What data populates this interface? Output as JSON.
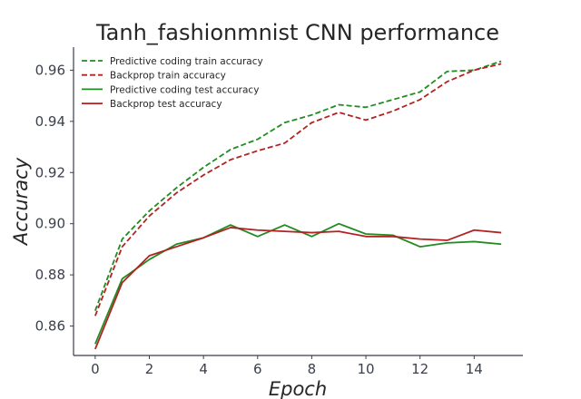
{
  "chart_data": {
    "type": "line",
    "title": "Tanh_fashionmnist CNN performance",
    "xlabel": "Epoch",
    "ylabel": "Accuracy",
    "x": [
      0,
      1,
      2,
      3,
      4,
      5,
      6,
      7,
      8,
      9,
      10,
      11,
      12,
      13,
      14,
      15
    ],
    "xlim": [
      -0.8,
      15.8
    ],
    "ylim": [
      0.8485,
      0.969
    ],
    "xticks": [
      0,
      2,
      4,
      6,
      8,
      10,
      12,
      14
    ],
    "xtick_labels": [
      "0",
      "2",
      "4",
      "6",
      "8",
      "10",
      "12",
      "14"
    ],
    "yticks": [
      0.86,
      0.88,
      0.9,
      0.92,
      0.94,
      0.96
    ],
    "ytick_labels": [
      "0.86",
      "0.88",
      "0.90",
      "0.92",
      "0.94",
      "0.96"
    ],
    "grid": false,
    "legend_position": "top-left",
    "series": [
      {
        "name": "Predictive coding train accuracy",
        "color": "#228B22",
        "style": "dashed",
        "values": [
          0.866,
          0.894,
          0.905,
          0.914,
          0.922,
          0.929,
          0.933,
          0.9395,
          0.9425,
          0.9465,
          0.9455,
          0.9485,
          0.9515,
          0.9595,
          0.96,
          0.9635
        ]
      },
      {
        "name": "Backprop train accuracy",
        "color": "#B22222",
        "style": "dashed",
        "values": [
          0.864,
          0.891,
          0.903,
          0.912,
          0.919,
          0.925,
          0.9285,
          0.9315,
          0.9395,
          0.9435,
          0.9405,
          0.944,
          0.9485,
          0.9555,
          0.96,
          0.9625
        ]
      },
      {
        "name": "Predictive coding test accuracy",
        "color": "#228B22",
        "style": "solid",
        "values": [
          0.853,
          0.8785,
          0.886,
          0.892,
          0.8945,
          0.8995,
          0.895,
          0.8995,
          0.895,
          0.9,
          0.896,
          0.8955,
          0.891,
          0.8925,
          0.893,
          0.892
        ]
      },
      {
        "name": "Backprop test accuracy",
        "color": "#B22222",
        "style": "solid",
        "values": [
          0.851,
          0.877,
          0.8875,
          0.891,
          0.8945,
          0.8985,
          0.8975,
          0.897,
          0.8965,
          0.897,
          0.895,
          0.895,
          0.894,
          0.8935,
          0.8975,
          0.8965
        ]
      }
    ]
  }
}
